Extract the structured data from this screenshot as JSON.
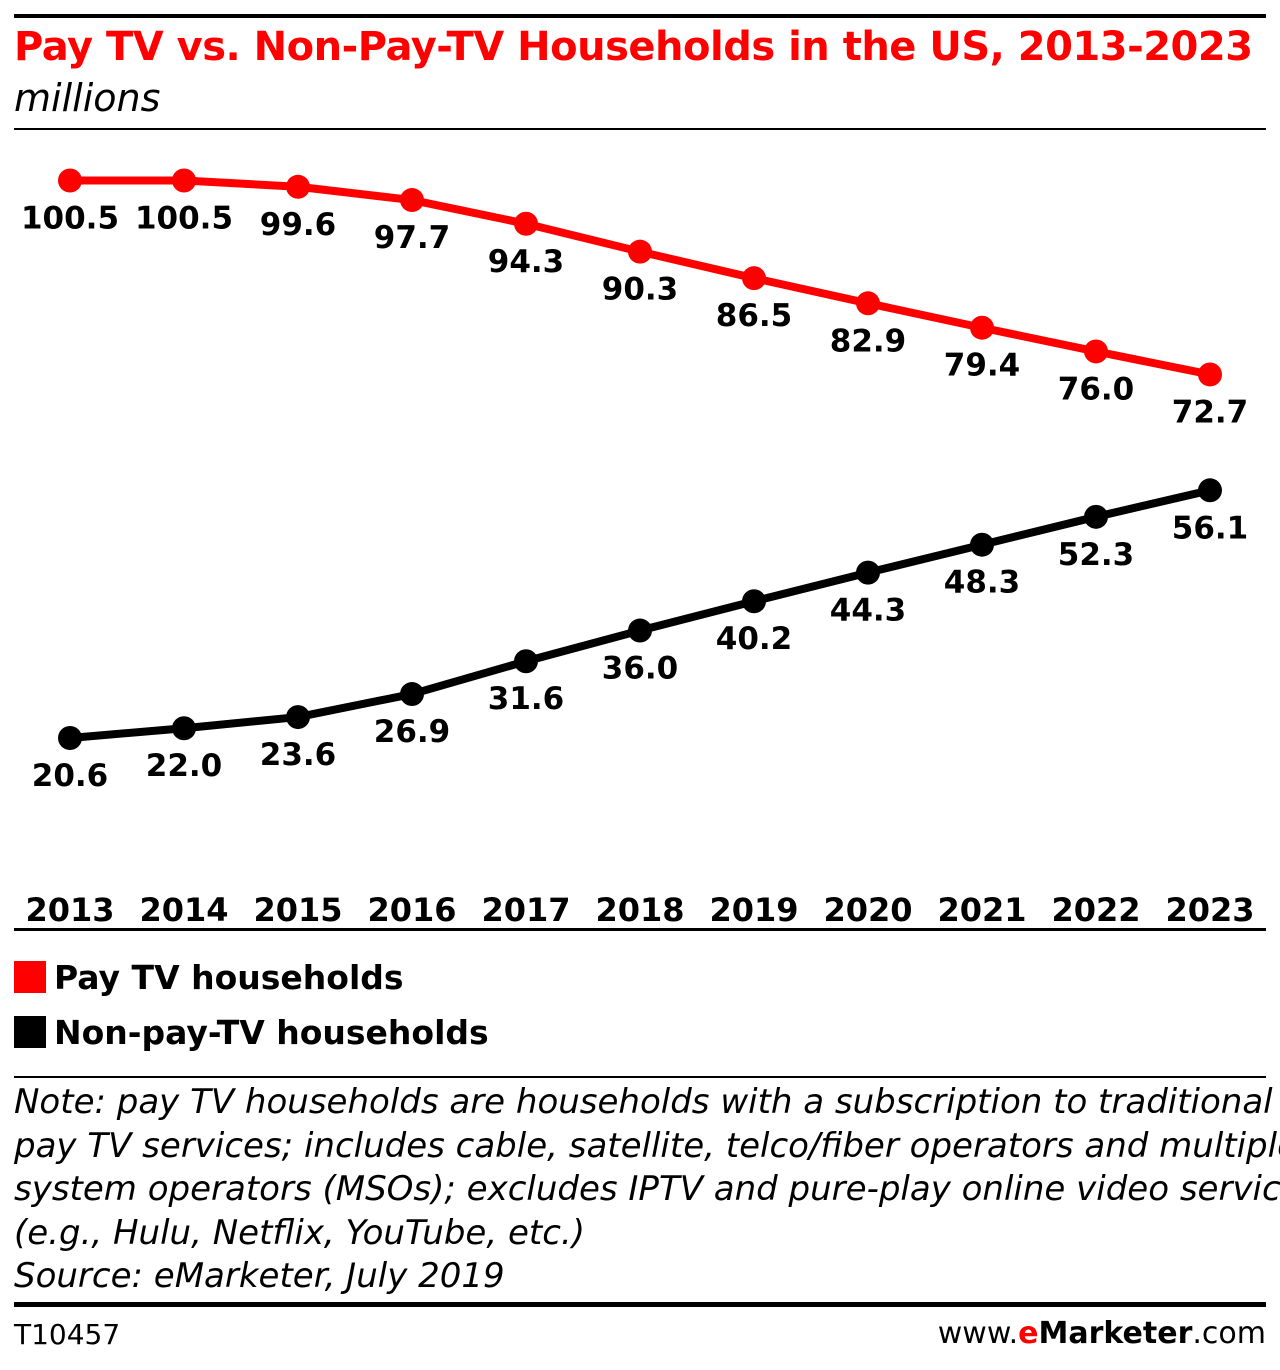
{
  "header": {
    "title": "Pay TV vs. Non-Pay-TV Households in the US, 2013-2023",
    "subtitle": "millions"
  },
  "colors": {
    "pay_tv": "#ff0000",
    "non_pay_tv": "#000000",
    "title": "#ff0000"
  },
  "chart_data": {
    "type": "line",
    "title": "Pay TV vs. Non-Pay-TV Households in the US, 2013-2023",
    "subtitle": "millions",
    "categories": [
      "2013",
      "2014",
      "2015",
      "2016",
      "2017",
      "2018",
      "2019",
      "2020",
      "2021",
      "2022",
      "2023"
    ],
    "series": [
      {
        "name": "Pay TV households",
        "color": "#ff0000",
        "values": [
          100.5,
          100.5,
          99.6,
          97.7,
          94.3,
          90.3,
          86.5,
          82.9,
          79.4,
          76.0,
          72.7
        ]
      },
      {
        "name": "Non-pay-TV households",
        "color": "#000000",
        "values": [
          20.6,
          22.0,
          23.6,
          26.9,
          31.6,
          36.0,
          40.2,
          44.3,
          48.3,
          52.3,
          56.1
        ]
      }
    ],
    "data_labels": true,
    "value_format": "0.0",
    "grid": false,
    "legend_position": "bottom-left",
    "yaxis_visible": false
  },
  "legend": {
    "items": [
      {
        "label": "Pay TV households",
        "color": "#ff0000"
      },
      {
        "label": "Non-pay-TV households",
        "color": "#000000"
      }
    ]
  },
  "footer": {
    "note_lines": [
      "Note: pay TV households are households with a subscription to traditional",
      "pay TV services; includes cable, satellite, telco/fiber operators and multiple",
      "system operators (MSOs); excludes IPTV and pure-play online video services",
      "(e.g., Hulu, Netflix, YouTube, etc.)",
      "Source: eMarketer, July 2019"
    ],
    "chart_id": "T10457",
    "brand": {
      "prefix": "www.",
      "e": "e",
      "name": "Marketer",
      "suffix": ".com"
    }
  }
}
